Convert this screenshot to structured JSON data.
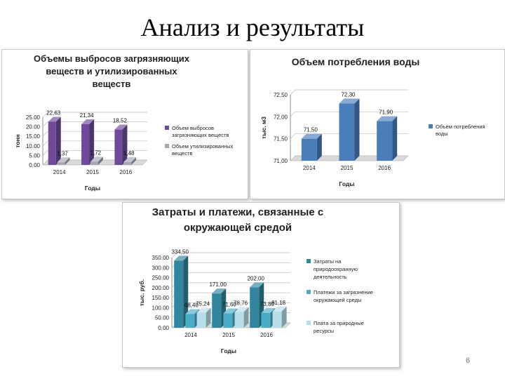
{
  "slide": {
    "title": "Анализ и результаты",
    "page_number": "6"
  },
  "chart_data": [
    {
      "type": "bar",
      "title": "Объемы выбросов загрязняющих веществ и утилизированных веществ",
      "title_lines": [
        "Объемы выбросов загрязняющих",
        "веществ и утилизированных",
        "веществ"
      ],
      "xlabel": "Годы",
      "ylabel": "тонн",
      "categories": [
        "2014",
        "2015",
        "2016"
      ],
      "ylim": [
        0,
        25
      ],
      "yticks": [
        "0.00",
        "5.00",
        "10.00",
        "15.00",
        "20.00",
        "25.00"
      ],
      "series": [
        {
          "name": "Объем выбросов загрязняющих веществ",
          "legend_lines": [
            "Объем выбросов",
            "загрязняющих веществ"
          ],
          "values": [
            22.63,
            21.34,
            18.52
          ],
          "labels": [
            "22,63",
            "21,34",
            "18,52"
          ],
          "color": "#6f4a9a"
        },
        {
          "name": "Объем утилизированных веществ",
          "legend_lines": [
            "Объем утилизированных",
            "веществ"
          ],
          "values": [
            1.37,
            1.72,
            1.48
          ],
          "labels": [
            "1,37",
            "1,72",
            "1,48"
          ],
          "color": "#a6a6b4"
        }
      ],
      "legend": "right",
      "grid": true
    },
    {
      "type": "bar",
      "title": "Объем потребления воды",
      "title_lines": [
        "Объем потребления воды"
      ],
      "xlabel": "Годы",
      "ylabel": "тыс. м3",
      "categories": [
        "2014",
        "2015",
        "2016"
      ],
      "ylim": [
        71,
        72.5
      ],
      "yticks": [
        "71,00",
        "71,50",
        "72,00",
        "72,50"
      ],
      "series": [
        {
          "name": "Объем потребления воды",
          "legend_lines": [
            "Объем потребления",
            "воды"
          ],
          "values": [
            71.5,
            72.3,
            71.9
          ],
          "labels": [
            "71,50",
            "72,30",
            "71,90"
          ],
          "color": "#4a7ebb"
        }
      ],
      "legend": "right",
      "grid": true
    },
    {
      "type": "bar",
      "title": "Затраты и платежи, связанные с окружающей средой",
      "title_lines": [
        "Затраты и платежи, связанные с",
        "окружающей средой"
      ],
      "xlabel": "Годы",
      "ylabel": "тыс. руб.",
      "categories": [
        "2014",
        "2015",
        "2016"
      ],
      "ylim": [
        0,
        350
      ],
      "yticks": [
        "0.00",
        "50.00",
        "100.00",
        "150.00",
        "200.00",
        "250.00",
        "300.00",
        "350.00"
      ],
      "series": [
        {
          "name": "Затраты на природоохранную деятельность",
          "legend_lines": [
            "Затраты на",
            "природоохранную",
            "деятельность"
          ],
          "values": [
            334.5,
            171.0,
            202.0
          ],
          "labels": [
            "334,50",
            "171,00",
            "202,00"
          ],
          "color": "#31859c"
        },
        {
          "name": "Платежи за загрязнение окружающей среды",
          "legend_lines": [
            "Платежи за загрязнение",
            "окружающей среды"
          ],
          "values": [
            68.4,
            71.6,
            73.8
          ],
          "labels": [
            "68,40",
            "71,60",
            "73,80"
          ],
          "color": "#4bacc6"
        },
        {
          "name": "Плата за природные ресурсы",
          "legend_lines": [
            "Плата за природные",
            "ресурсы"
          ],
          "values": [
            75.24,
            78.76,
            81.18
          ],
          "labels": [
            "75,24",
            "78,76",
            "81,18"
          ],
          "color": "#b7dde8"
        }
      ],
      "legend": "right",
      "grid": true
    }
  ]
}
